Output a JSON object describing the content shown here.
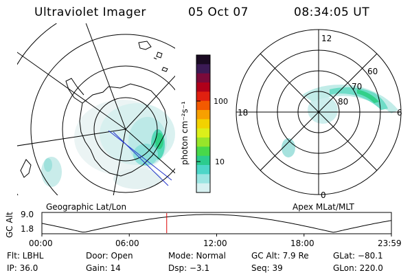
{
  "header": {
    "title": "Ultraviolet Imager",
    "date": "05 Oct 07",
    "time": "08:34:05 UT"
  },
  "colorbar": {
    "unit_label": "photon cm⁻²s⁻¹",
    "ticks": [
      "100",
      "10"
    ],
    "colors": [
      "#1a0a22",
      "#3b1a55",
      "#7a0a3a",
      "#b0001a",
      "#e02010",
      "#f35a00",
      "#f7a000",
      "#f2d200",
      "#dcef1a",
      "#98e52a",
      "#48d84a",
      "#2ccc8e",
      "#4dd6c8",
      "#9be5e2",
      "#d7f1f1"
    ]
  },
  "left_map": {
    "projection_label": "Geographic Lat/Lon"
  },
  "right_map": {
    "projection_label": "Apex MLat/MLT",
    "lat_labels": [
      "80",
      "70",
      "60"
    ],
    "mlt_labels": {
      "top": "12",
      "bottom": "0",
      "left": "18",
      "right": "6"
    }
  },
  "altitude_plot": {
    "axis_label": "GC Alt",
    "y_ticks": [
      "9.0",
      "1.8"
    ],
    "x_ticks": [
      "00:00",
      "06:00",
      "12:00",
      "18:00",
      "23:59"
    ],
    "current_time_hours": 8.57
  },
  "footer": {
    "filter": "Flt: LBHL",
    "door": "Door: Open",
    "mode": "Mode: Normal",
    "gc_alt": "GC Alt: 7.9 Re",
    "glat": "GLat: −80.1",
    "ip": "IP: 36.0",
    "gain": "Gain: 14",
    "dsp": "Dsp:    −3.1",
    "seq": "Seq: 39",
    "glon": "GLon: 220.0"
  }
}
